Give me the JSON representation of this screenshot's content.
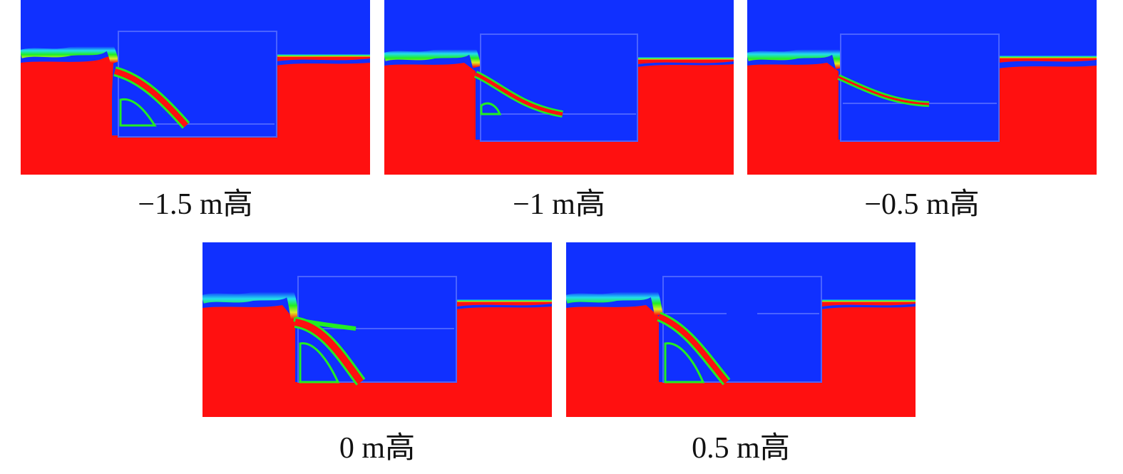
{
  "colors": {
    "water": "#ff1010",
    "air": "#1030ff",
    "interface_green": "#22ee22",
    "interface_yellow": "#ddee22",
    "interface_cyan": "#22ddee"
  },
  "panels": [
    {
      "id": "p1",
      "label": "−1.5 m高",
      "deck_level": "−1.5 m"
    },
    {
      "id": "p2",
      "label": "−1 m高",
      "deck_level": "−1 m"
    },
    {
      "id": "p3",
      "label": "−0.5 m高",
      "deck_level": "−0.5 m"
    },
    {
      "id": "p4",
      "label": "0 m高",
      "deck_level": "0 m"
    },
    {
      "id": "p5",
      "label": "0.5 m高",
      "deck_level": "0.5 m"
    }
  ]
}
